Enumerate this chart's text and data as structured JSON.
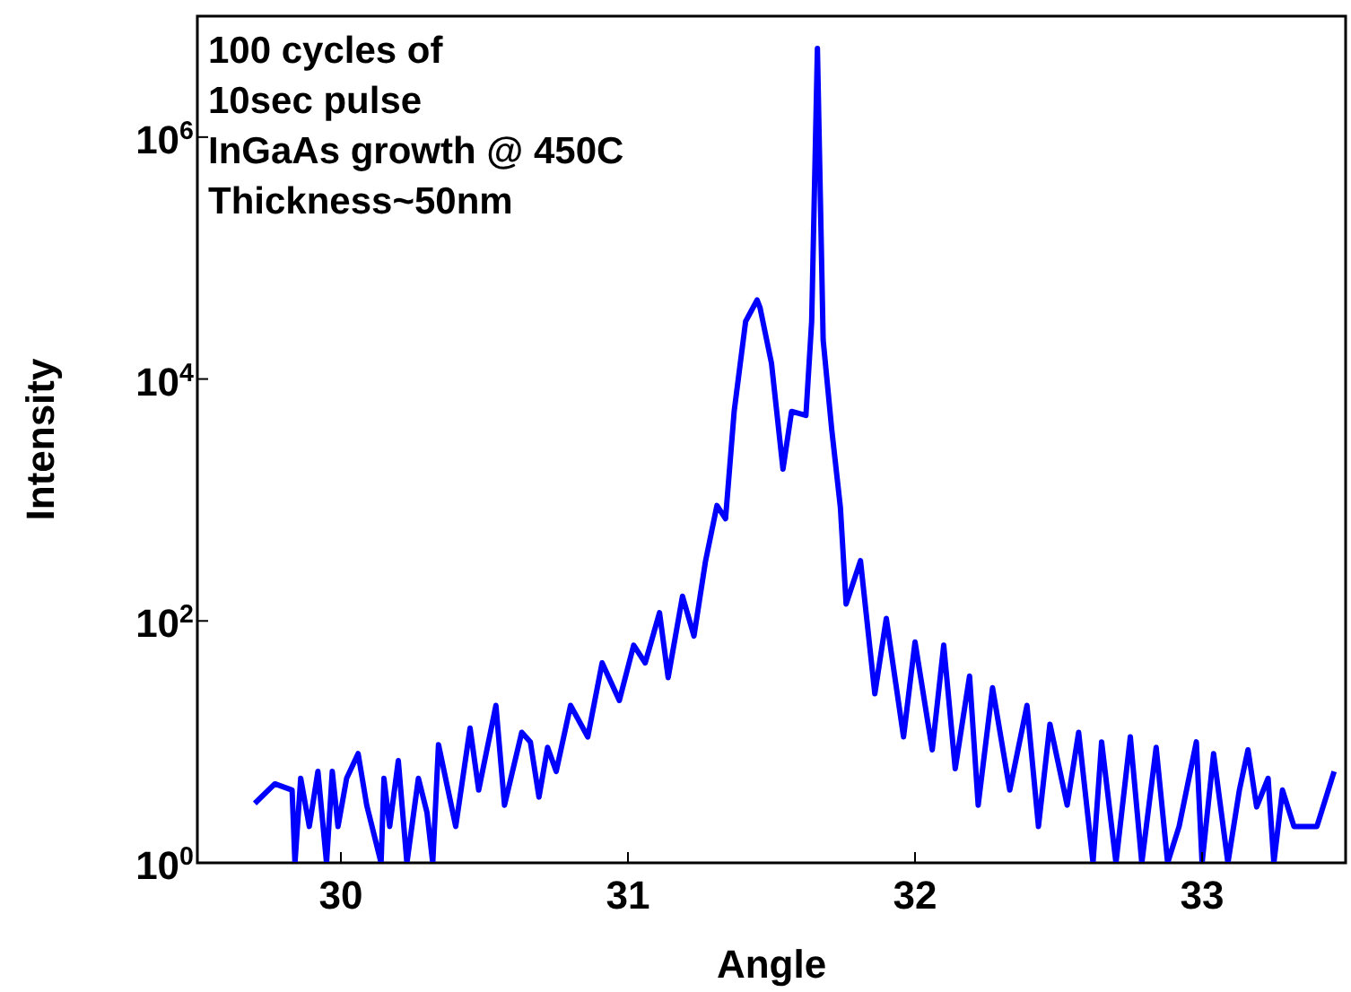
{
  "chart_data": {
    "type": "line",
    "xlabel": "Angle",
    "ylabel": "Intensity",
    "log": "y",
    "xlim": [
      29.5,
      33.5
    ],
    "xticks": [
      30,
      31,
      32,
      33
    ],
    "ylim": [
      1,
      10000000
    ],
    "yticks": [
      {
        "value": 1,
        "label": "10$^{0}$"
      },
      {
        "value": 100,
        "label": "10$^{2}$"
      },
      {
        "value": 10000,
        "label": "10$^{4}$"
      },
      {
        "value": 1000000,
        "label": "10$^{6}$"
      }
    ],
    "annotations": [
      "100 cycles of",
      "10sec pulse",
      "InGaAs growth @ 450C",
      "Thickness~50nm"
    ],
    "series": [
      {
        "color": "#0000ff",
        "x": [
          29.7,
          29.77,
          29.83,
          29.84,
          29.86,
          29.89,
          29.92,
          29.95,
          29.97,
          29.99,
          30.02,
          30.06,
          30.09,
          30.14,
          30.15,
          30.17,
          30.2,
          30.23,
          30.27,
          30.3,
          30.32,
          30.34,
          30.4,
          30.45,
          30.48,
          30.54,
          30.57,
          30.63,
          30.66,
          30.69,
          30.72,
          30.75,
          30.8,
          30.86,
          30.91,
          30.97,
          31.02,
          31.06,
          31.11,
          31.14,
          31.19,
          31.23,
          31.27,
          31.31,
          31.34,
          31.37,
          31.41,
          31.45,
          31.46,
          31.5,
          31.54,
          31.57,
          31.62,
          31.64,
          31.66,
          31.68,
          31.71,
          31.74,
          31.76,
          31.81,
          31.86,
          31.9,
          31.96,
          32.0,
          32.06,
          32.1,
          32.14,
          32.19,
          32.22,
          32.27,
          32.33,
          32.39,
          32.43,
          32.47,
          32.53,
          32.57,
          32.62,
          32.65,
          32.7,
          32.75,
          32.79,
          32.84,
          32.88,
          32.92,
          32.98,
          33.0,
          33.04,
          33.09,
          33.13,
          33.16,
          33.19,
          33.23,
          33.25,
          33.28,
          33.32,
          33.4,
          33.46
        ],
        "values": [
          3.1,
          4.5,
          4,
          1,
          5,
          2,
          5.7,
          1,
          5.7,
          2,
          5,
          8,
          3,
          1,
          5,
          2,
          7,
          1,
          5,
          2.6,
          1,
          9.5,
          2,
          13,
          4,
          20,
          3,
          12,
          10,
          3.5,
          9,
          5.7,
          20,
          11,
          45,
          22,
          63,
          45,
          117,
          34,
          160,
          75,
          310,
          900,
          700,
          5400,
          30000,
          45000,
          39000,
          13500,
          1800,
          5400,
          5000,
          30000,
          5400000,
          21000,
          3800,
          870,
          138,
          315,
          25,
          105,
          11,
          67,
          8.6,
          63,
          6,
          35,
          3,
          28,
          4,
          20,
          2,
          14,
          3,
          12,
          1,
          10,
          1,
          11,
          1,
          9,
          1,
          2,
          10,
          1,
          8,
          1,
          4,
          8.6,
          2.9,
          5,
          1,
          4,
          2,
          2,
          5.7
        ]
      }
    ]
  }
}
